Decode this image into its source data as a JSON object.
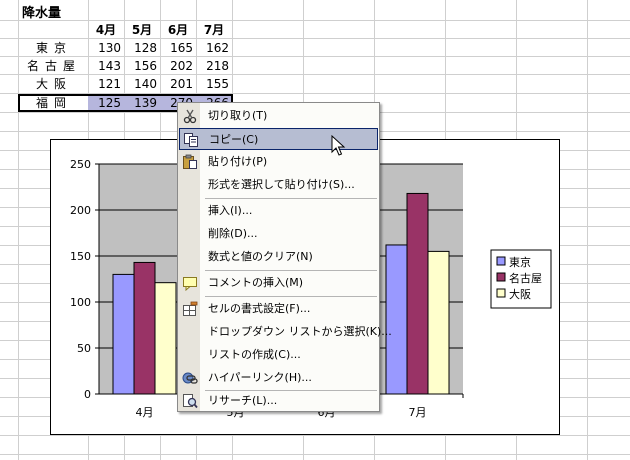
{
  "sheet": {
    "title": "降水量",
    "headers": [
      "4月",
      "5月",
      "6月",
      "7月"
    ],
    "rows": [
      {
        "city": "東京",
        "values": [
          "130",
          "128",
          "165",
          "162"
        ]
      },
      {
        "city": "名古屋",
        "values": [
          "143",
          "156",
          "202",
          "218"
        ]
      },
      {
        "city": "大阪",
        "values": [
          "121",
          "140",
          "201",
          "155"
        ]
      },
      {
        "city": "福岡",
        "values": [
          "125",
          "139",
          "270",
          "266"
        ]
      }
    ]
  },
  "context_menu": {
    "items": [
      {
        "label": "切り取り(T)",
        "icon": "scissors-icon"
      },
      {
        "label": "コピー(C)",
        "icon": "copy-icon",
        "hover": true
      },
      {
        "label": "貼り付け(P)",
        "icon": "paste-icon"
      },
      {
        "label": "形式を選択して貼り付け(S)..."
      },
      {
        "label": "挿入(I)..."
      },
      {
        "label": "削除(D)..."
      },
      {
        "label": "数式と値のクリア(N)"
      },
      {
        "label": "コメントの挿入(M)",
        "icon": "comment-icon"
      },
      {
        "label": "セルの書式設定(F)...",
        "icon": "format-cells-icon"
      },
      {
        "label": "ドロップダウン リストから選択(K)..."
      },
      {
        "label": "リストの作成(C)..."
      },
      {
        "label": "ハイパーリンク(H)...",
        "icon": "hyperlink-icon"
      },
      {
        "label": "リサーチ(L)...",
        "icon": "research-icon"
      }
    ]
  },
  "colors": {
    "tokyo": "#9999ff",
    "nagoya": "#993366",
    "osaka": "#ffffcc",
    "plot_bg": "#c0c0c0",
    "highlight": "#b6bdd2"
  },
  "chart_data": {
    "type": "bar",
    "categories": [
      "4月",
      "5月",
      "6月",
      "7月"
    ],
    "series": [
      {
        "name": "東京",
        "values": [
          130,
          128,
          165,
          162
        ]
      },
      {
        "name": "名古屋",
        "values": [
          143,
          156,
          202,
          218
        ]
      },
      {
        "name": "大阪",
        "values": [
          121,
          140,
          201,
          155
        ]
      }
    ],
    "yticks": [
      "0",
      "50",
      "100",
      "150",
      "200",
      "250"
    ],
    "ylim": [
      0,
      250
    ],
    "grid": true,
    "legend": "right"
  }
}
